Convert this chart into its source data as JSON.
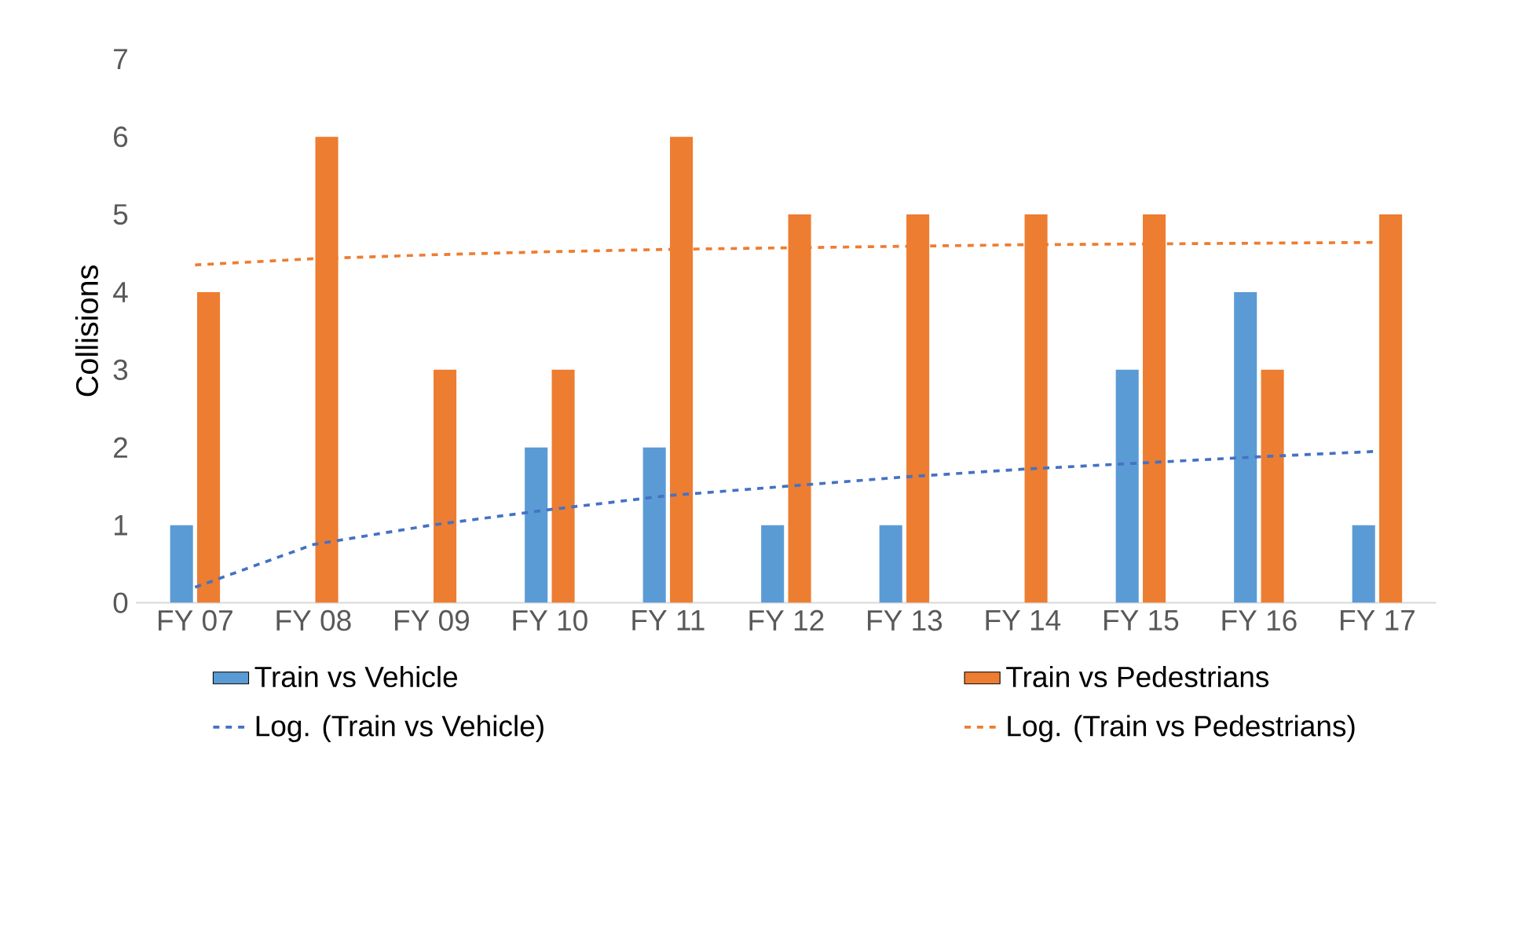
{
  "chart_data": {
    "type": "bar",
    "ylabel": "Collisions",
    "categories": [
      "FY 07",
      "FY 08",
      "FY 09",
      "FY 10",
      "FY 11",
      "FY 12",
      "FY 13",
      "FY 14",
      "FY 15",
      "FY 16",
      "FY 17"
    ],
    "series": [
      {
        "name": "Train vs Vehicle",
        "color": "#5b9bd5",
        "values": [
          1,
          0,
          0,
          2,
          2,
          1,
          1,
          0,
          3,
          4,
          1
        ]
      },
      {
        "name": "Train vs Pedestrians",
        "color": "#ed7d31",
        "values": [
          4,
          6,
          3,
          3,
          6,
          5,
          5,
          5,
          5,
          3,
          5
        ]
      },
      {
        "name": "Log. (Train vs Vehicle)",
        "type": "line",
        "line_style": "dashed",
        "color": "#4472c4",
        "values": [
          0.2,
          0.75,
          1.0,
          1.2,
          1.38,
          1.5,
          1.62,
          1.72,
          1.8,
          1.88,
          1.95
        ]
      },
      {
        "name": "Log. (Train vs Pedestrians)",
        "type": "line",
        "line_style": "dashed",
        "color": "#ed7d31",
        "values": [
          4.35,
          4.43,
          4.48,
          4.52,
          4.55,
          4.57,
          4.59,
          4.61,
          4.62,
          4.63,
          4.64
        ]
      }
    ],
    "ylim": [
      0,
      7
    ],
    "yticks": [
      0,
      1,
      2,
      3,
      4,
      5,
      6,
      7
    ],
    "grid": false,
    "legend": "bottom"
  }
}
